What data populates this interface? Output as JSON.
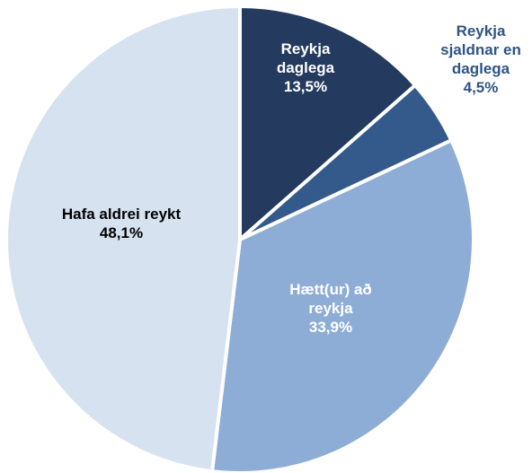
{
  "chart_data": {
    "type": "pie",
    "categories": [
      "Reykja daglega",
      "Reykja sjaldnar en daglega",
      "Hætt(ur) að reykja",
      "Hafa aldrei reykt"
    ],
    "values": [
      13.5,
      4.5,
      33.9,
      48.1
    ],
    "value_labels": [
      "13,5%",
      "4,5%",
      "33,9%",
      "48,1%"
    ],
    "colors": [
      "#243a5e",
      "#345a8c",
      "#8eadd6",
      "#d6e2f0"
    ]
  }
}
